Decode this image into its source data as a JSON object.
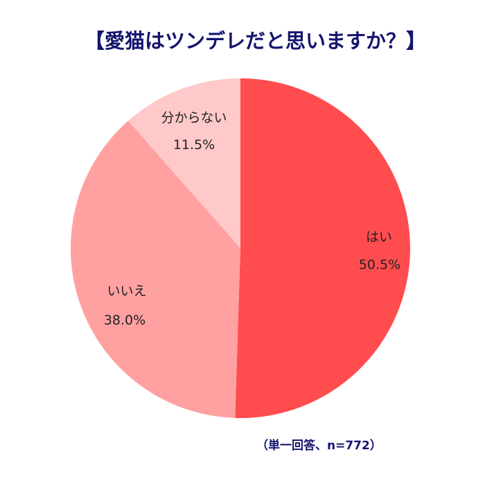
{
  "chart_data": {
    "type": "pie",
    "title": "【愛猫はツンデレだと思いますか？】",
    "note": "（単一回答、n=772）",
    "categories": [
      "はい",
      "いいえ",
      "分からない"
    ],
    "values": [
      50.5,
      38.0,
      11.5
    ],
    "value_labels": [
      "50.5%",
      "38.0%",
      "11.5%"
    ],
    "colors": [
      "#ff4c4f",
      "#ffa1a1",
      "#ffc9c9"
    ],
    "start_angle": "12 o'clock",
    "direction": "clockwise",
    "legend": "none (labels inside slices)"
  },
  "slices": [
    {
      "label": "はい",
      "pct": "50.5%"
    },
    {
      "label": "いいえ",
      "pct": "38.0%"
    },
    {
      "label": "分からない",
      "pct": "11.5%"
    }
  ]
}
